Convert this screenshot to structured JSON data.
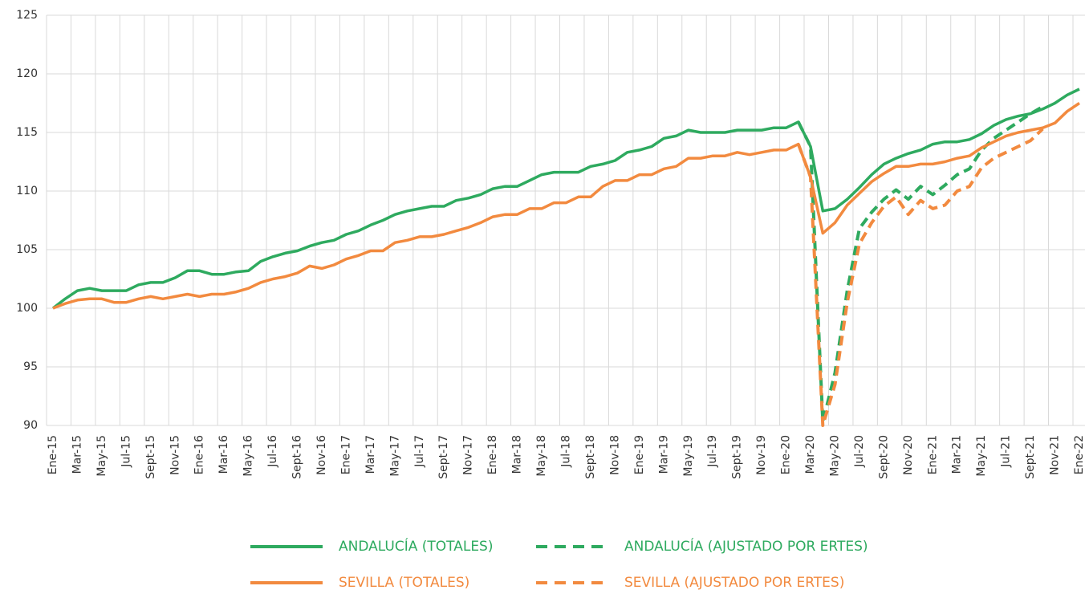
{
  "chart_data": {
    "type": "line",
    "categories": [
      "Ene-15",
      null,
      "Mar-15",
      null,
      "May-15",
      null,
      "Jul-15",
      null,
      "Sept-15",
      null,
      "Nov-15",
      null,
      "Ene-16",
      null,
      "Mar-16",
      null,
      "May-16",
      null,
      "Jul-16",
      null,
      "Sept-16",
      null,
      "Nov-16",
      null,
      "Ene-17",
      null,
      "Mar-17",
      null,
      "May-17",
      null,
      "Jul-17",
      null,
      "Sept-17",
      null,
      "Nov-17",
      null,
      "Ene-18",
      null,
      "Mar-18",
      null,
      "May-18",
      null,
      "Jul-18",
      null,
      "Sept-18",
      null,
      "Nov-18",
      null,
      "Ene-19",
      null,
      "Mar-19",
      null,
      "May-19",
      null,
      "Jul-19",
      null,
      "Sept-19",
      null,
      "Nov-19",
      null,
      "Ene-20",
      null,
      "Mar-20",
      null,
      "May-20",
      null,
      "Jul-20",
      null,
      "Sept-20",
      null,
      "Nov-20",
      null,
      "Ene-21",
      null,
      "Mar-21",
      null,
      "May-21",
      null,
      "Jul-21",
      null,
      "Sept-21",
      null,
      "Nov-21",
      null,
      "Ene-22"
    ],
    "series": [
      {
        "name": "ANDALUCÍA (TOTALES)",
        "color": "#2eaa5f",
        "dashed": false,
        "values": [
          100,
          100.8,
          101.5,
          101.7,
          101.5,
          101.5,
          101.5,
          102.0,
          102.2,
          102.2,
          102.6,
          103.2,
          103.2,
          102.9,
          102.9,
          103.1,
          103.2,
          104.0,
          104.4,
          104.7,
          104.9,
          105.3,
          105.6,
          105.8,
          106.3,
          106.6,
          107.1,
          107.5,
          108.0,
          108.3,
          108.5,
          108.7,
          108.7,
          109.2,
          109.4,
          109.7,
          110.2,
          110.4,
          110.4,
          110.9,
          111.4,
          111.6,
          111.6,
          111.6,
          112.1,
          112.3,
          112.6,
          113.3,
          113.5,
          113.8,
          114.5,
          114.7,
          115.2,
          115.0,
          115.0,
          115.0,
          115.2,
          115.2,
          115.2,
          115.4,
          115.4,
          115.9,
          113.8,
          108.3,
          108.5,
          109.3,
          110.3,
          111.4,
          112.3,
          112.8,
          113.2,
          113.5,
          114.0,
          114.2,
          114.2,
          114.4,
          114.9,
          115.6,
          116.1,
          116.4,
          116.6,
          117.0,
          117.5,
          118.2,
          118.7
        ]
      },
      {
        "name": "ANDALUCÍA (AJUSTADO POR ERTES)",
        "color": "#2eaa5f",
        "dashed": true,
        "values": [
          null,
          null,
          null,
          null,
          null,
          null,
          null,
          null,
          null,
          null,
          null,
          null,
          null,
          null,
          null,
          null,
          null,
          null,
          null,
          null,
          null,
          null,
          null,
          null,
          null,
          null,
          null,
          null,
          null,
          null,
          null,
          null,
          null,
          null,
          null,
          null,
          null,
          null,
          null,
          null,
          null,
          null,
          null,
          null,
          null,
          null,
          null,
          null,
          null,
          null,
          null,
          null,
          null,
          null,
          null,
          null,
          null,
          null,
          null,
          null,
          null,
          115.9,
          113.8,
          90.3,
          94.5,
          101.5,
          106.8,
          108.2,
          109.3,
          110.1,
          109.3,
          110.4,
          109.7,
          110.5,
          111.4,
          111.9,
          113.5,
          114.5,
          115.2,
          115.9,
          116.6,
          117.2,
          null,
          null,
          null
        ]
      },
      {
        "name": "SEVILLA (TOTALES)",
        "color": "#f28a3f",
        "dashed": false,
        "values": [
          100,
          100.4,
          100.7,
          100.8,
          100.8,
          100.5,
          100.5,
          100.8,
          101.0,
          100.8,
          101.0,
          101.2,
          101.0,
          101.2,
          101.2,
          101.4,
          101.7,
          102.2,
          102.5,
          102.7,
          103.0,
          103.6,
          103.4,
          103.7,
          104.2,
          104.5,
          104.9,
          104.9,
          105.6,
          105.8,
          106.1,
          106.1,
          106.3,
          106.6,
          106.9,
          107.3,
          107.8,
          108.0,
          108.0,
          108.5,
          108.5,
          109.0,
          109.0,
          109.5,
          109.5,
          110.4,
          110.9,
          110.9,
          111.4,
          111.4,
          111.9,
          112.1,
          112.8,
          112.8,
          113.0,
          113.0,
          113.3,
          113.1,
          113.3,
          113.5,
          113.5,
          114.0,
          111.2,
          106.4,
          107.3,
          108.8,
          109.8,
          110.8,
          111.5,
          112.1,
          112.1,
          112.3,
          112.3,
          112.5,
          112.8,
          113.0,
          113.7,
          114.2,
          114.7,
          115.0,
          115.2,
          115.4,
          115.8,
          116.8,
          117.5
        ]
      },
      {
        "name": "SEVILLA (AJUSTADO POR ERTES)",
        "color": "#f28a3f",
        "dashed": true,
        "values": [
          null,
          null,
          null,
          null,
          null,
          null,
          null,
          null,
          null,
          null,
          null,
          null,
          null,
          null,
          null,
          null,
          null,
          null,
          null,
          null,
          null,
          null,
          null,
          null,
          null,
          null,
          null,
          null,
          null,
          null,
          null,
          null,
          null,
          null,
          null,
          null,
          null,
          null,
          null,
          null,
          null,
          null,
          null,
          null,
          null,
          null,
          null,
          null,
          null,
          null,
          null,
          null,
          null,
          null,
          null,
          null,
          null,
          null,
          null,
          null,
          null,
          114.0,
          111.2,
          90,
          93.5,
          100.5,
          105.5,
          107.3,
          108.7,
          109.5,
          108.0,
          109.2,
          108.5,
          108.8,
          110.0,
          110.4,
          112.0,
          112.8,
          113.3,
          113.8,
          114.3,
          115.3,
          null,
          null,
          null
        ]
      }
    ],
    "ylim": [
      90,
      125
    ],
    "yticks": [
      90,
      95,
      100,
      105,
      110,
      115,
      120,
      125
    ],
    "grid": true
  }
}
